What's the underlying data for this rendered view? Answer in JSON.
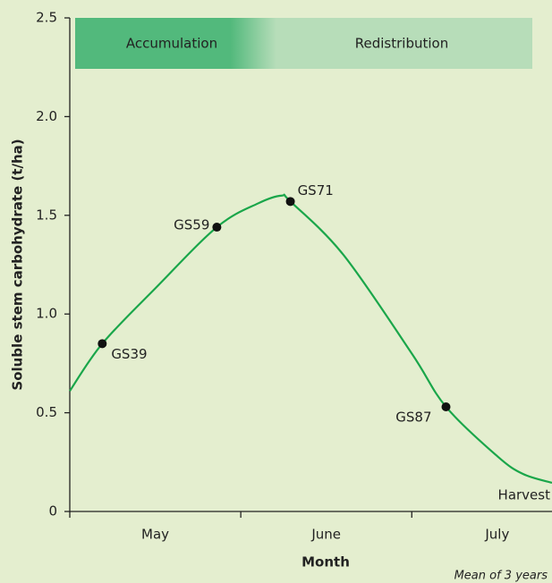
{
  "chart_data": {
    "type": "line",
    "y_label": "Soluble stem carbohydrate (t/ha)",
    "x_label": "Month",
    "note": "Mean of 3 years",
    "phases": [
      "Accumulation",
      "Redistribution"
    ],
    "categories": [
      "May",
      "June",
      "July"
    ],
    "xlim": [
      0,
      2.82
    ],
    "xticks": [
      0,
      1,
      2
    ],
    "ylim": [
      0,
      2.5
    ],
    "yticks": [
      0,
      0.5,
      {
        "value": 1.0,
        "label": "1.0"
      },
      1.5,
      {
        "value": 2.0,
        "label": "2.0"
      },
      2.5
    ],
    "color": "#1aa64a",
    "curve": {
      "x": [
        0,
        0.19,
        0.5,
        0.86,
        1.1,
        1.24,
        1.29,
        1.6,
        2.0,
        2.2,
        2.5,
        2.65,
        2.82
      ],
      "values": [
        0.61,
        0.85,
        1.13,
        1.44,
        1.56,
        1.6,
        1.57,
        1.3,
        0.8,
        0.53,
        0.28,
        0.19,
        0.145
      ]
    },
    "points": {
      "labels": [
        "GS39",
        "GS59",
        "GS71",
        "GS87"
      ],
      "x": [
        0.19,
        0.86,
        1.29,
        2.2
      ],
      "values": [
        0.85,
        1.44,
        1.57,
        0.53
      ]
    },
    "end_label": "Harvest"
  }
}
